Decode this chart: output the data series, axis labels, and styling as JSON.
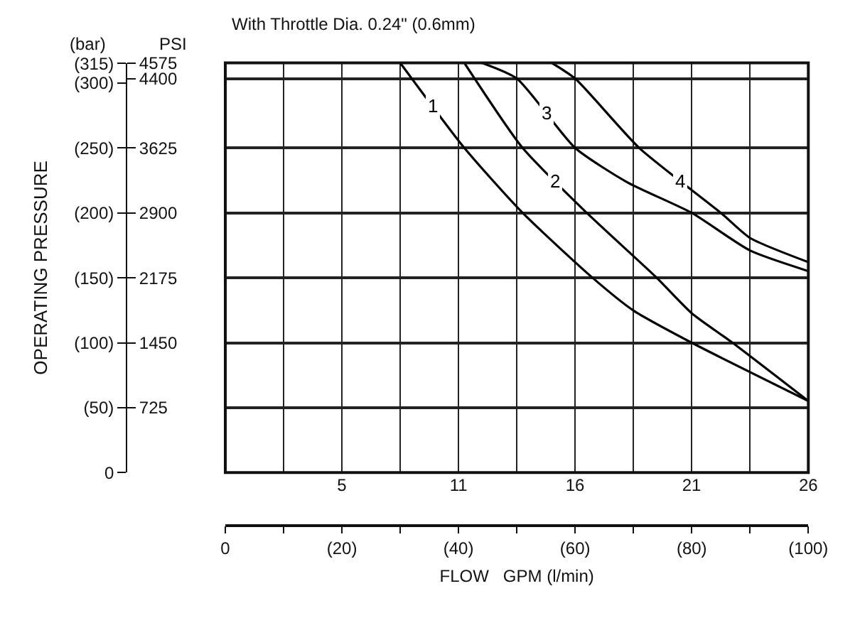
{
  "chart_data": {
    "type": "line",
    "title": "With Throttle Dia. 0.24\" (0.6mm)",
    "xlabel": "FLOW   GPM (l/min)",
    "ylabel": "OPERATING PRESSURE",
    "annotations": [
      "(bar)",
      "PSI"
    ],
    "xlim": [
      0,
      100
    ],
    "xticks": [
      {
        "value": 0,
        "label": "0"
      },
      {
        "value": 10,
        "label": null
      },
      {
        "value": 20,
        "label": "(20)"
      },
      {
        "value": 30,
        "label": null
      },
      {
        "value": 40,
        "label": "(40)"
      },
      {
        "value": 50,
        "label": null
      },
      {
        "value": 60,
        "label": "(60)"
      },
      {
        "value": 70,
        "label": null
      },
      {
        "value": 80,
        "label": "(80)"
      },
      {
        "value": 90,
        "label": null
      },
      {
        "value": 100,
        "label": "(100)"
      }
    ],
    "x2lim": [
      0,
      26.42
    ],
    "x2ticks": [
      {
        "value": 5.28,
        "label": "5"
      },
      {
        "value": 10.57,
        "label": "11"
      },
      {
        "value": 15.85,
        "label": "16"
      },
      {
        "value": 21.13,
        "label": "21"
      },
      {
        "value": 26.42,
        "label": "26"
      }
    ],
    "y2lim": [
      0,
      4575
    ],
    "y2ticks": [
      725,
      1450,
      2175,
      2900,
      3625,
      4400,
      4575
    ],
    "ylim": [
      0,
      315.5
    ],
    "yticks": [
      {
        "value": 0,
        "label": "0"
      },
      {
        "value": 50,
        "label": "(50)"
      },
      {
        "value": 100,
        "label": "(100)"
      },
      {
        "value": 150,
        "label": "(150)"
      },
      {
        "value": 200,
        "label": "(200)"
      },
      {
        "value": 250,
        "label": "(250)"
      },
      {
        "value": 300,
        "label": "(300)"
      },
      {
        "value": 315,
        "label": "(315)"
      }
    ],
    "grid": true,
    "legend": false,
    "marker": "none",
    "line_style": "solid",
    "series": [
      {
        "name": "1",
        "color": "#000000",
        "axis": "y2",
        "x": [
          30,
          41,
          51,
          63,
          70,
          80,
          100
        ],
        "values": [
          4575,
          3625,
          2900,
          2175,
          1810,
          1450,
          800
        ]
      },
      {
        "name": "2",
        "color": "#000000",
        "axis": "y2",
        "x": [
          41,
          51,
          62,
          74,
          80,
          87,
          100
        ],
        "values": [
          4575,
          3625,
          2900,
          2175,
          1780,
          1450,
          800
        ]
      },
      {
        "name": "3",
        "color": "#000000",
        "axis": "y2",
        "x": [
          44,
          50,
          60,
          69,
          80,
          90,
          100
        ],
        "values": [
          4575,
          4400,
          3625,
          3240,
          2900,
          2480,
          2250
        ]
      },
      {
        "name": "4",
        "color": "#000000",
        "axis": "y2",
        "x": [
          56,
          60,
          71,
          85,
          90,
          100
        ],
        "values": [
          4575,
          4400,
          3625,
          2900,
          2620,
          2350
        ]
      }
    ]
  }
}
